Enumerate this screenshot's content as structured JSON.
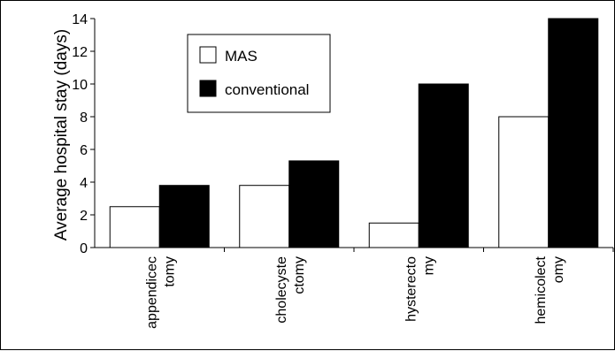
{
  "chart_data": {
    "type": "bar",
    "title": "",
    "xlabel": "",
    "ylabel": "Average hospital stay (days)",
    "ylim": [
      0,
      14
    ],
    "yticks": [
      "0",
      "2",
      "4",
      "6",
      "8",
      "10",
      "12",
      "14"
    ],
    "categories": [
      [
        "appendicec",
        "tomy"
      ],
      [
        "cholecyste",
        "ctomy"
      ],
      [
        "hysterecto",
        "my"
      ],
      [
        "hemicolect",
        "omy"
      ]
    ],
    "series": [
      {
        "name": "MAS",
        "color": "#ffffff",
        "values": [
          2.5,
          3.8,
          1.5,
          8.0
        ]
      },
      {
        "name": "conventional",
        "color": "#000000",
        "values": [
          3.8,
          5.3,
          10.0,
          14.0
        ]
      }
    ],
    "legend": {
      "placement": "top-left"
    },
    "grid": false
  }
}
